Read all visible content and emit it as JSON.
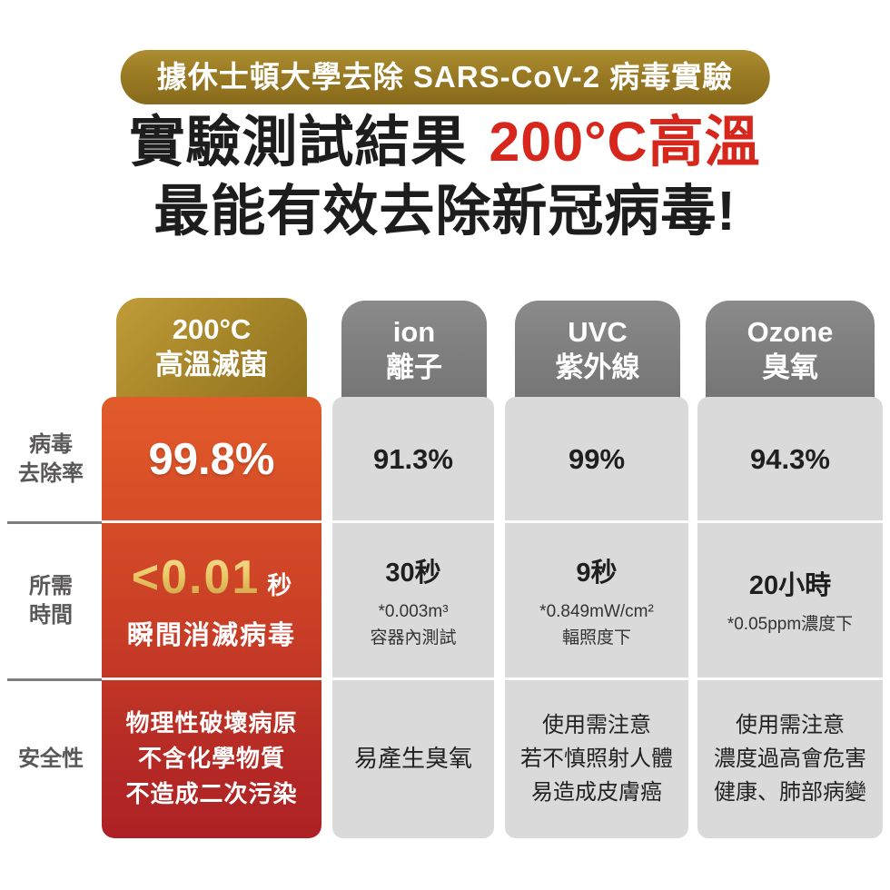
{
  "badge": {
    "text": "據休士頓大學去除 SARS-CoV-2 病毒實驗"
  },
  "headline": {
    "line1_prefix": "實驗測試結果 ",
    "line1_highlight": "200°C高溫",
    "line2": "最能有效去除新冠病毒!"
  },
  "row_labels": {
    "removal_line1": "病毒",
    "removal_line2": "去除率",
    "time_line1": "所需",
    "time_line2": "時間",
    "safety": "安全性"
  },
  "columns": [
    {
      "header_line1": "200°C",
      "header_line2": "高溫滅菌",
      "removal_rate": "99.8%",
      "time_value": "<0.01",
      "time_unit": "秒",
      "time_note1": "瞬間消滅病毒",
      "safety_line1": "物理性破壞病原",
      "safety_line2": "不含化學物質",
      "safety_line3": "不造成二次污染"
    },
    {
      "header_line1": "ion",
      "header_line2": "離子",
      "removal_rate": "91.3%",
      "time_value": "30秒",
      "time_note1": "*0.003m³",
      "time_note2": "容器內測試",
      "safety_line1": "易產生臭氧"
    },
    {
      "header_line1": "UVC",
      "header_line2": "紫外線",
      "removal_rate": "99%",
      "time_value": "9秒",
      "time_note1": "*0.849mW/cm²",
      "time_note2": "輻照度下",
      "safety_line1": "使用需注意",
      "safety_line2": "若不慎照射人體",
      "safety_line3": "易造成皮膚癌"
    },
    {
      "header_line1": "Ozone",
      "header_line2": "臭氧",
      "removal_rate": "94.3%",
      "time_value": "20小時",
      "time_note1": "*0.05ppm濃度下",
      "safety_line1": "使用需注意",
      "safety_line2": "濃度過高會危害",
      "safety_line3": "健康、肺部病變"
    }
  ],
  "colors": {
    "headline_red": "#d7261c",
    "badge_gold": "#9a7b24",
    "column1_gradient_top": "#e25b2a",
    "column1_gradient_bottom": "#ad2125",
    "header_gray": "#7c7c7c",
    "cell_gray": "#dadada",
    "label_gray": "#595757",
    "gold_text": "#e5c469"
  },
  "chart_data": {
    "type": "table",
    "title": "實驗測試結果 200°C高溫 最能有效去除新冠病毒!",
    "subtitle": "據休士頓大學去除 SARS-CoV-2 病毒實驗",
    "column_headers": [
      "200°C 高溫滅菌",
      "ion 離子",
      "UVC 紫外線",
      "Ozone 臭氧"
    ],
    "row_headers": [
      "病毒去除率",
      "所需時間",
      "安全性"
    ],
    "rows": [
      [
        "99.8%",
        "91.3%",
        "99%",
        "94.3%"
      ],
      [
        "<0.01秒(瞬間消滅病毒)",
        "30秒(*0.003m³容器內測試)",
        "9秒(*0.849mW/cm²輻照度下)",
        "20小時(*0.05ppm濃度下)"
      ],
      [
        "物理性破壞病原,不含化學物質,不造成二次污染",
        "易產生臭氧",
        "使用需注意,若不慎照射人體易造成皮膚癌",
        "使用需注意,濃度過高會危害健康、肺部病變"
      ]
    ],
    "removal_rate_percent": [
      99.8,
      91.3,
      99,
      94.3
    ],
    "highlighted_column": "200°C 高溫滅菌"
  }
}
